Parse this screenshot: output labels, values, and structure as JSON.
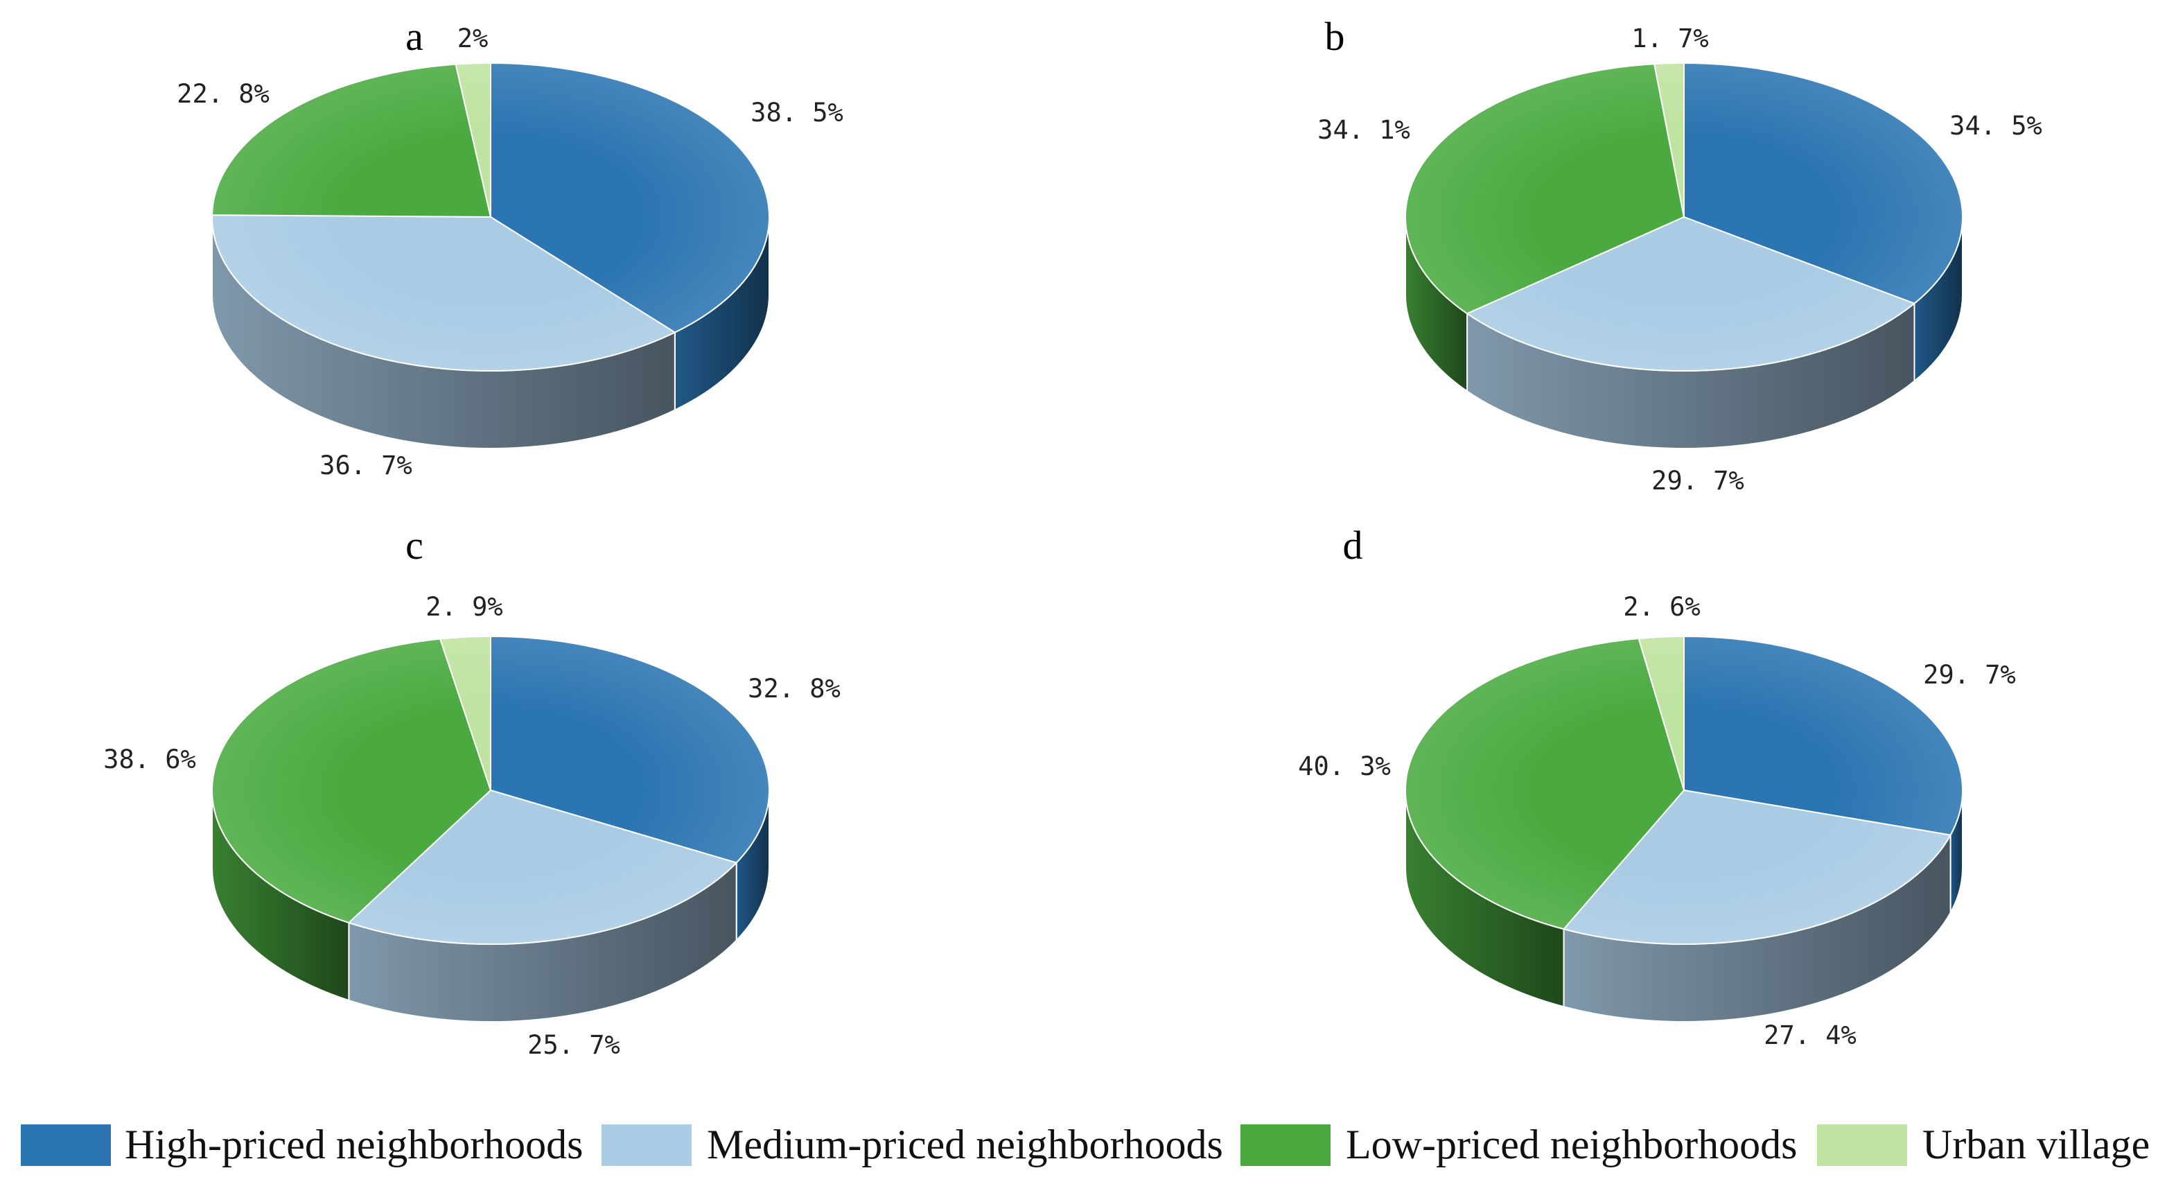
{
  "categories": [
    "High-priced neighborhoods",
    "Medium-priced neighborhoods",
    "Low-priced neighborhoods",
    "Urban village"
  ],
  "colors": {
    "High-priced neighborhoods": "#2b75b2",
    "Medium-priced neighborhoods": "#a9cbe4",
    "Low-priced neighborhoods": "#4aaa40",
    "Urban village": "#bfe3a0"
  },
  "chart_data": [
    {
      "type": "pie",
      "panel": "a",
      "categories": [
        "High-priced neighborhoods",
        "Medium-priced neighborhoods",
        "Low-priced neighborhoods",
        "Urban village"
      ],
      "values": [
        38.5,
        36.7,
        22.8,
        2.0
      ],
      "labels": [
        "38. 5%",
        "36. 7%",
        "22. 8%",
        "2%"
      ]
    },
    {
      "type": "pie",
      "panel": "b",
      "categories": [
        "High-priced neighborhoods",
        "Medium-priced neighborhoods",
        "Low-priced neighborhoods",
        "Urban village"
      ],
      "values": [
        34.5,
        29.7,
        34.1,
        1.7
      ],
      "labels": [
        "34. 5%",
        "29. 7%",
        "34. 1%",
        "1. 7%"
      ]
    },
    {
      "type": "pie",
      "panel": "c",
      "categories": [
        "High-priced neighborhoods",
        "Medium-priced neighborhoods",
        "Low-priced neighborhoods",
        "Urban village"
      ],
      "values": [
        32.8,
        25.7,
        38.6,
        2.9
      ],
      "labels": [
        "32. 8%",
        "25. 7%",
        "38. 6%",
        "2. 9%"
      ]
    },
    {
      "type": "pie",
      "panel": "d",
      "categories": [
        "High-priced neighborhoods",
        "Medium-priced neighborhoods",
        "Low-priced neighborhoods",
        "Urban village"
      ],
      "values": [
        29.7,
        27.4,
        40.3,
        2.6
      ],
      "labels": [
        "29. 7%",
        "27. 4%",
        "40. 3%",
        "2. 6%"
      ]
    }
  ]
}
